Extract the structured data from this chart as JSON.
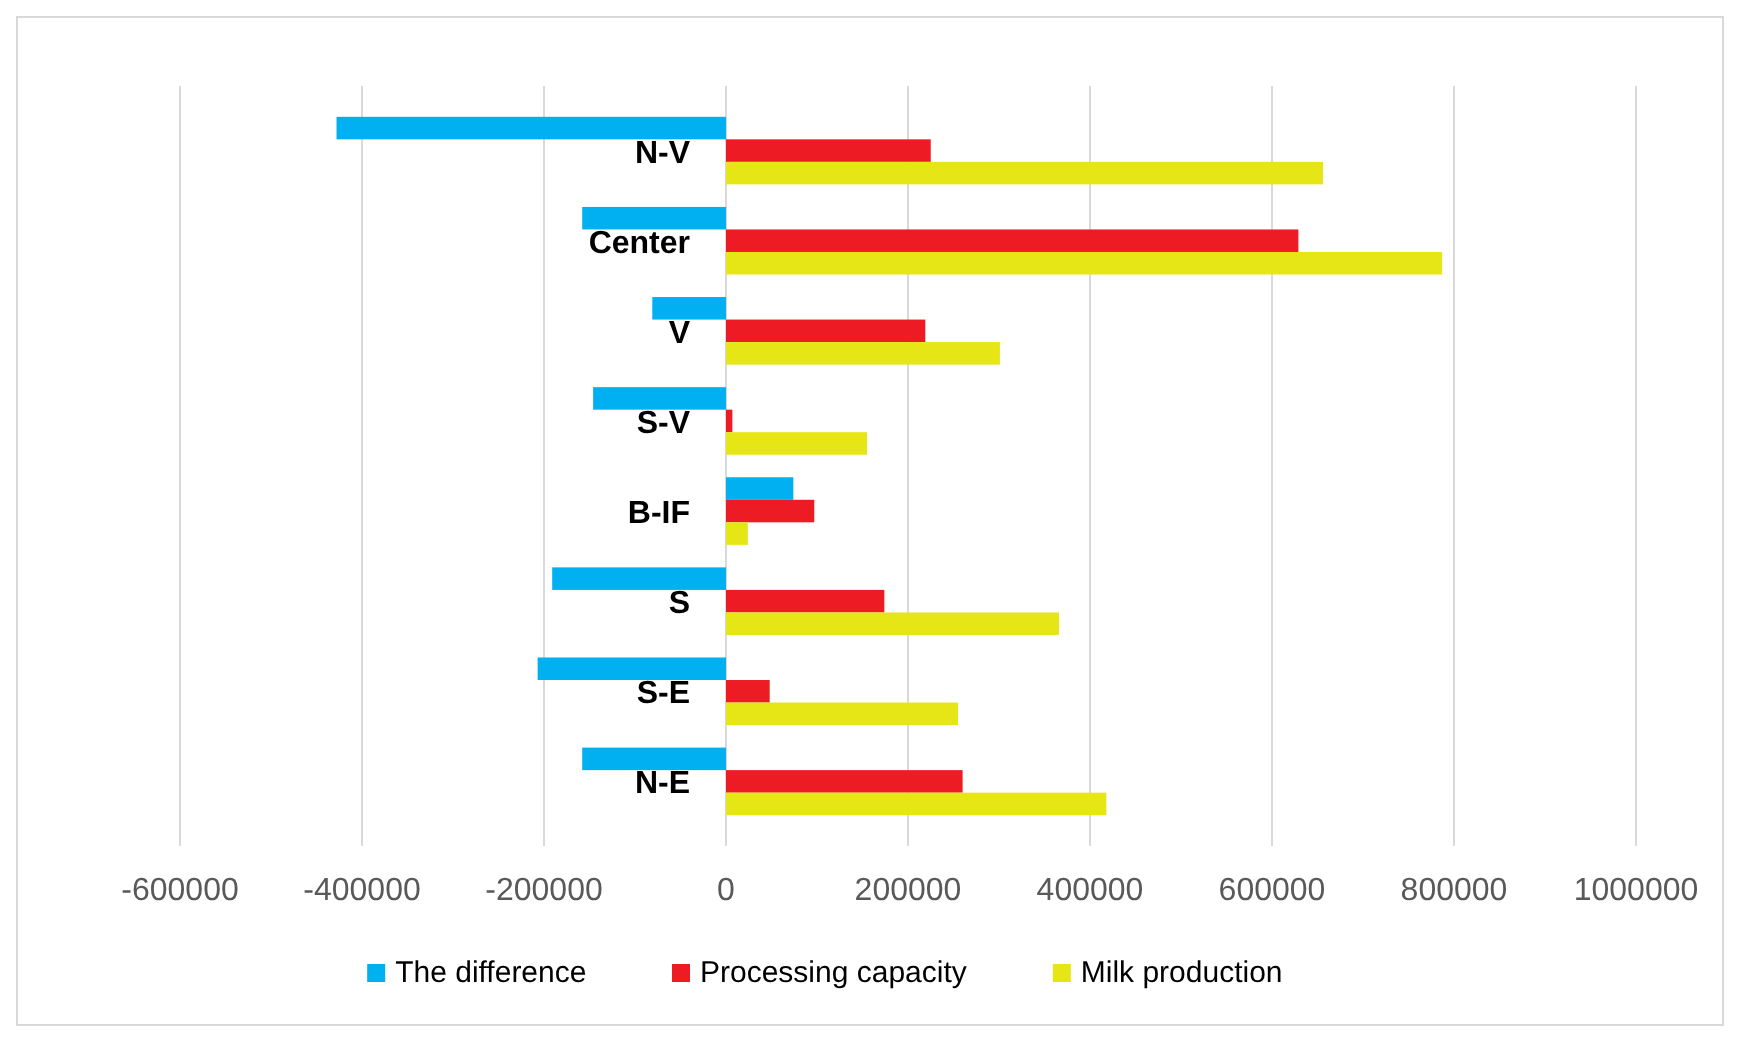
{
  "chart_data": {
    "type": "bar",
    "orientation": "horizontal",
    "categories": [
      "N-V",
      "Center",
      "V",
      "S-V",
      "B-IF",
      "S",
      "S-E",
      "N-E"
    ],
    "series": [
      {
        "name": "The difference",
        "color": "#00b0f0",
        "values": [
          -428000,
          -158000,
          -81000,
          -146000,
          74000,
          -191000,
          -207000,
          -158000
        ]
      },
      {
        "name": "Processing capacity",
        "color": "#ed1c24",
        "values": [
          225000,
          629000,
          219000,
          7000,
          97000,
          174000,
          48000,
          260000
        ]
      },
      {
        "name": "Milk production",
        "color": "#e6e617",
        "values": [
          656000,
          787000,
          301000,
          155000,
          24000,
          366000,
          255000,
          418000
        ]
      }
    ],
    "xlim": [
      -600000,
      1000000
    ],
    "xticks": [
      -600000,
      -400000,
      -200000,
      0,
      200000,
      400000,
      600000,
      800000,
      1000000
    ],
    "grid": "x",
    "legend": "bottom"
  }
}
